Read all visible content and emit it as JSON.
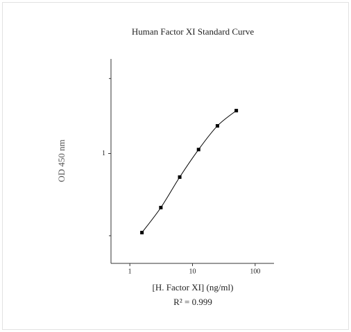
{
  "chart_data": {
    "type": "line",
    "title": "Human Factor XI Standard Curve",
    "x_label": "[H. Factor XI] (ng/ml)",
    "y_label": "OD 450 nm",
    "annotation": "R² = 0.999",
    "x": [
      1.56,
      3.125,
      6.25,
      12.5,
      25,
      50
    ],
    "series": [
      {
        "color": "#000000",
        "values": [
          0.314,
          0.453,
          0.708,
          1.06,
          1.5,
          1.875
        ]
      }
    ],
    "xscale": "log",
    "yscale": "log",
    "xlim": [
      0.5,
      200
    ],
    "ylim": [
      0.2,
      4
    ],
    "xticks": [
      1,
      10,
      100
    ],
    "yticks": [
      1
    ],
    "yminor_ticks": [
      0.3,
      3
    ]
  }
}
